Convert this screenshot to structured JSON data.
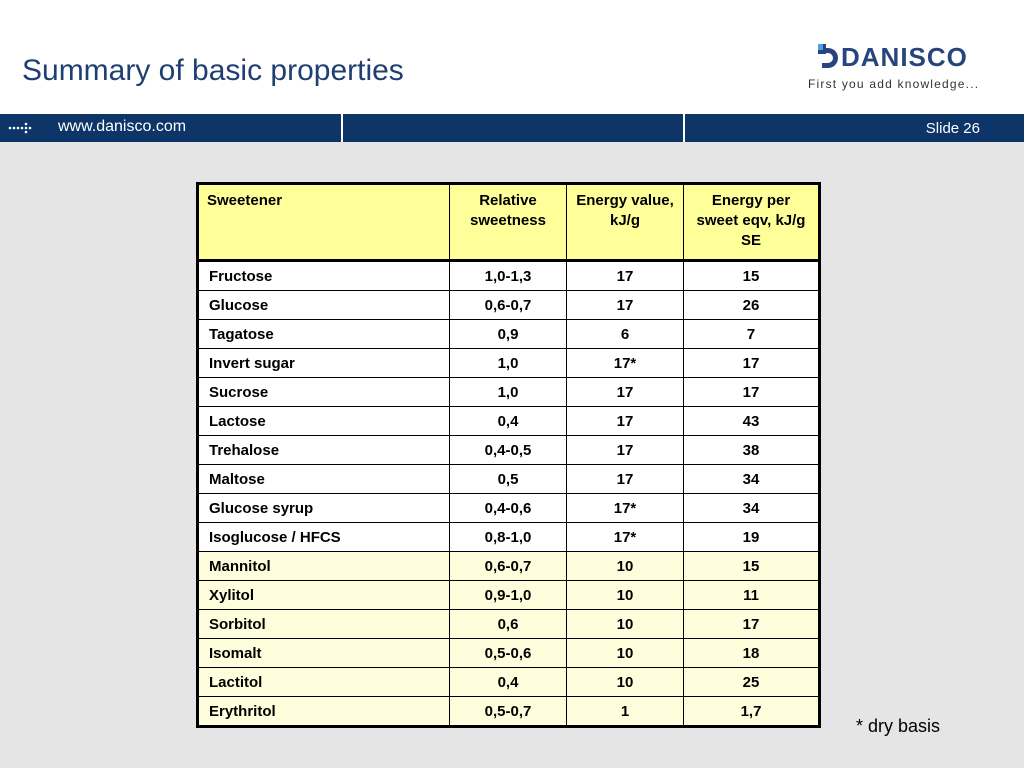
{
  "slide": {
    "title": "Summary of basic properties",
    "url": "www.danisco.com",
    "slide_number": "Slide 26",
    "footnote": "* dry basis"
  },
  "logo": {
    "name": "DANISCO",
    "tagline": "First you add knowledge..."
  },
  "colors": {
    "brand_blue": "#0d3567",
    "header_yellow": "#ffff9a",
    "polyol_row": "#fefedc",
    "background_gray": "#e5e5e5"
  },
  "icons": {
    "bar_arrow": "dotted-arrow-icon"
  },
  "table": {
    "headers": [
      "Sweetener",
      "Relative sweetness",
      "Energy value, kJ/g",
      "Energy per sweet eqv, kJ/g SE"
    ],
    "rows": [
      {
        "name": "Fructose",
        "relative": "1,0-1,3",
        "energy": "17",
        "per_se": "15",
        "polyol": false
      },
      {
        "name": "Glucose",
        "relative": "0,6-0,7",
        "energy": "17",
        "per_se": "26",
        "polyol": false
      },
      {
        "name": "Tagatose",
        "relative": "0,9",
        "energy": "6",
        "per_se": "7",
        "polyol": false
      },
      {
        "name": "Invert sugar",
        "relative": "1,0",
        "energy": "17*",
        "per_se": "17",
        "polyol": false
      },
      {
        "name": "Sucrose",
        "relative": "1,0",
        "energy": "17",
        "per_se": "17",
        "polyol": false
      },
      {
        "name": "Lactose",
        "relative": "0,4",
        "energy": "17",
        "per_se": "43",
        "polyol": false
      },
      {
        "name": "Trehalose",
        "relative": "0,4-0,5",
        "energy": "17",
        "per_se": "38",
        "polyol": false
      },
      {
        "name": "Maltose",
        "relative": "0,5",
        "energy": "17",
        "per_se": "34",
        "polyol": false
      },
      {
        "name": "Glucose syrup",
        "relative": "0,4-0,6",
        "energy": "17*",
        "per_se": "34",
        "polyol": false
      },
      {
        "name": "Isoglucose  / HFCS",
        "relative": "0,8-1,0",
        "energy": "17*",
        "per_se": "19",
        "polyol": false
      },
      {
        "name": "Mannitol",
        "relative": "0,6-0,7",
        "energy": "10",
        "per_se": "15",
        "polyol": true
      },
      {
        "name": "Xylitol",
        "relative": "0,9-1,0",
        "energy": "10",
        "per_se": "11",
        "polyol": true
      },
      {
        "name": "Sorbitol",
        "relative": "0,6",
        "energy": "10",
        "per_se": "17",
        "polyol": true
      },
      {
        "name": "Isomalt",
        "relative": "0,5-0,6",
        "energy": "10",
        "per_se": "18",
        "polyol": true
      },
      {
        "name": "Lactitol",
        "relative": "0,4",
        "energy": "10",
        "per_se": "25",
        "polyol": true
      },
      {
        "name": "Erythritol",
        "relative": "0,5-0,7",
        "energy": "1",
        "per_se": "1,7",
        "polyol": true
      }
    ]
  }
}
